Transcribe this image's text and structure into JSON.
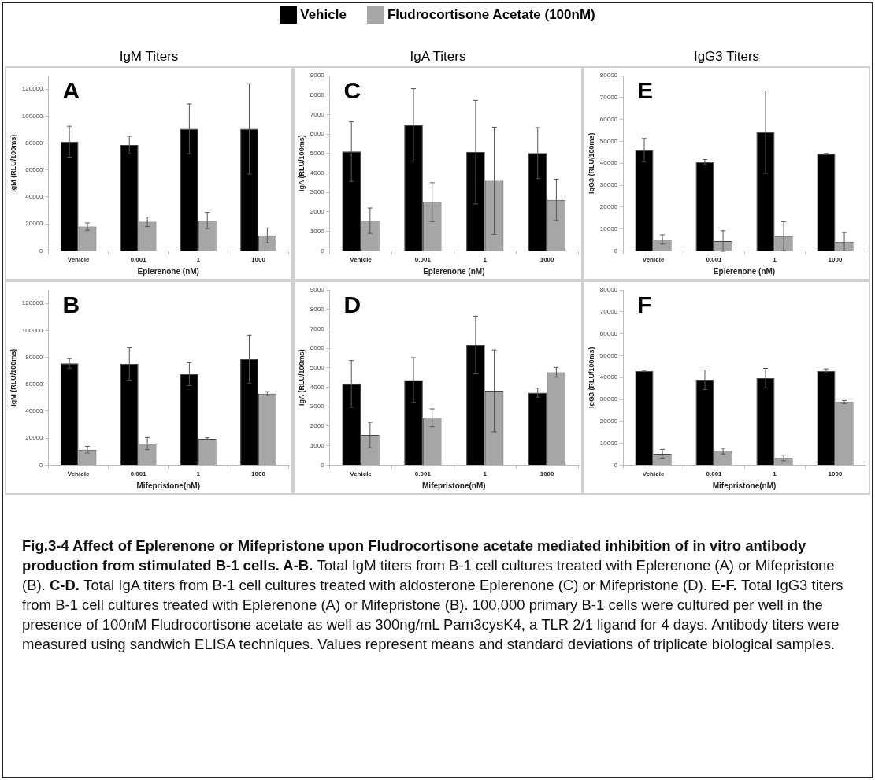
{
  "chart_data": [
    {
      "type": "bar",
      "title": "IgM Titers",
      "xlabel": "Eplerenone (nM)",
      "ylabel": "IgM (RLU/100ms)",
      "categories": [
        "Vehicle",
        "0.001",
        "1",
        "1000"
      ],
      "legend": "top",
      "series": [
        {
          "name": "Vehicle",
          "color": "#000000",
          "values": [
            81000,
            78500,
            90500,
            90500
          ],
          "errors": [
            11500,
            6500,
            18500,
            33500
          ]
        },
        {
          "name": "Fludrocortisone Acetate (100nM)",
          "color": "#a6a6a6",
          "values": [
            18000,
            21500,
            22500,
            11500
          ],
          "errors": [
            2700,
            3500,
            6000,
            5500
          ]
        }
      ],
      "ylim": [
        0,
        130000
      ],
      "yticks": [
        0,
        20000,
        40000,
        60000,
        80000,
        100000,
        120000
      ],
      "annotations": [
        "A"
      ]
    },
    {
      "type": "bar",
      "title": "IgA Titers",
      "xlabel": "Eplerenone (nM)",
      "ylabel": "IgA (RLU/100ms)",
      "categories": [
        "Vehicle",
        "0.001",
        "1",
        "1000"
      ],
      "series": [
        {
          "color": "#000000",
          "values": [
            5100,
            6450,
            5070,
            5020
          ],
          "errors": [
            1530,
            1880,
            2660,
            1310
          ]
        },
        {
          "color": "#a6a6a6",
          "values": [
            1550,
            2500,
            3600,
            2620
          ],
          "errors": [
            650,
            1000,
            2750,
            1060
          ]
        }
      ],
      "ylim": [
        0,
        9000
      ],
      "yticks": [
        0,
        1000,
        2000,
        3000,
        4000,
        5000,
        6000,
        7000,
        8000,
        9000
      ],
      "annotations": [
        "C"
      ]
    },
    {
      "type": "bar",
      "title": "IgG3 Titers",
      "xlabel": "Eplerenone (nM)",
      "ylabel": "IgG3 (RLU/100ms)",
      "categories": [
        "Vehicle",
        "0.001",
        "1",
        "1000"
      ],
      "series": [
        {
          "color": "#000000",
          "values": [
            46000,
            40500,
            54200,
            44300
          ],
          "errors": [
            5300,
            1200,
            18800,
            200
          ]
        },
        {
          "color": "#a6a6a6",
          "values": [
            5200,
            4500,
            6700,
            4200
          ],
          "errors": [
            2100,
            4700,
            6600,
            4200
          ]
        }
      ],
      "ylim": [
        0,
        80000
      ],
      "yticks": [
        0,
        10000,
        20000,
        30000,
        40000,
        50000,
        60000,
        70000,
        80000
      ],
      "annotations": [
        "E"
      ]
    },
    {
      "type": "bar",
      "xlabel": "Mifepristone(nM)",
      "ylabel": "IgM (RLU/100ms)",
      "categories": [
        "Vehicle",
        "0.001",
        "1",
        "1000"
      ],
      "series": [
        {
          "color": "#000000",
          "values": [
            75500,
            75000,
            67500,
            78500
          ],
          "errors": [
            3500,
            12000,
            8500,
            18000
          ]
        },
        {
          "color": "#a6a6a6",
          "values": [
            11500,
            16000,
            19500,
            53000
          ],
          "errors": [
            2500,
            4500,
            800,
            1500
          ]
        }
      ],
      "ylim": [
        0,
        130000
      ],
      "yticks": [
        0,
        20000,
        40000,
        60000,
        80000,
        100000,
        120000
      ],
      "annotations": [
        "B"
      ]
    },
    {
      "type": "bar",
      "xlabel": "Mifepristone(nM)",
      "ylabel": "IgA (RLU/100ms)",
      "categories": [
        "Vehicle",
        "0.001",
        "1",
        "1000"
      ],
      "series": [
        {
          "color": "#000000",
          "values": [
            4170,
            4370,
            6170,
            3720
          ],
          "errors": [
            1200,
            1150,
            1480,
            230
          ]
        },
        {
          "color": "#a6a6a6",
          "values": [
            1550,
            2430,
            3820,
            4770
          ],
          "errors": [
            650,
            460,
            2100,
            250
          ]
        }
      ],
      "ylim": [
        0,
        9000
      ],
      "yticks": [
        0,
        1000,
        2000,
        3000,
        4000,
        5000,
        6000,
        7000,
        8000,
        9000
      ],
      "annotations": [
        "D"
      ]
    },
    {
      "type": "bar",
      "xlabel": "Mifepristone(nM)",
      "ylabel": "IgG3 (RLU/100ms)",
      "categories": [
        "Vehicle",
        "0.001",
        "1",
        "1000"
      ],
      "series": [
        {
          "color": "#000000",
          "values": [
            43000,
            39000,
            39700,
            43000
          ],
          "errors": [
            300,
            4500,
            4500,
            1000
          ]
        },
        {
          "color": "#a6a6a6",
          "values": [
            5200,
            6400,
            3300,
            28800
          ],
          "errors": [
            2000,
            1300,
            1300,
            700
          ]
        }
      ],
      "ylim": [
        0,
        80000
      ],
      "yticks": [
        0,
        10000,
        20000,
        30000,
        40000,
        50000,
        60000,
        70000,
        80000
      ],
      "annotations": [
        "F",
        "Fig.3-4 Affect of Eplerenone or Mifepristone upon Fludrocortisone acetate mediated inhibition of in vitro antibody production from stimulated B-1 cells. A-B.",
        "Total IgM titers from B-1 cell cultures treated with Eplerenone (A) or Mifepristone (B).",
        "C-D.",
        "Total IgA titers from B-1 cell cultures treated with aldosterone Eplerenone (C) or Mifepristone (D).",
        "E-F.",
        "Total IgG3 titers from B-1 cell cultures treated with Eplerenone (A) or Mifepristone (B). 100,000 primary B-1 cells were cultured per well in the presence of 100nM Fludrocortisone acetate as well as 300ng/mL Pam3cysK4, a TLR 2/1 ligand for 4 days. Antibody titers were measured using sandwich ELISA techniques. Values represent means and standard deviations of triplicate biological samples."
      ]
    }
  ]
}
